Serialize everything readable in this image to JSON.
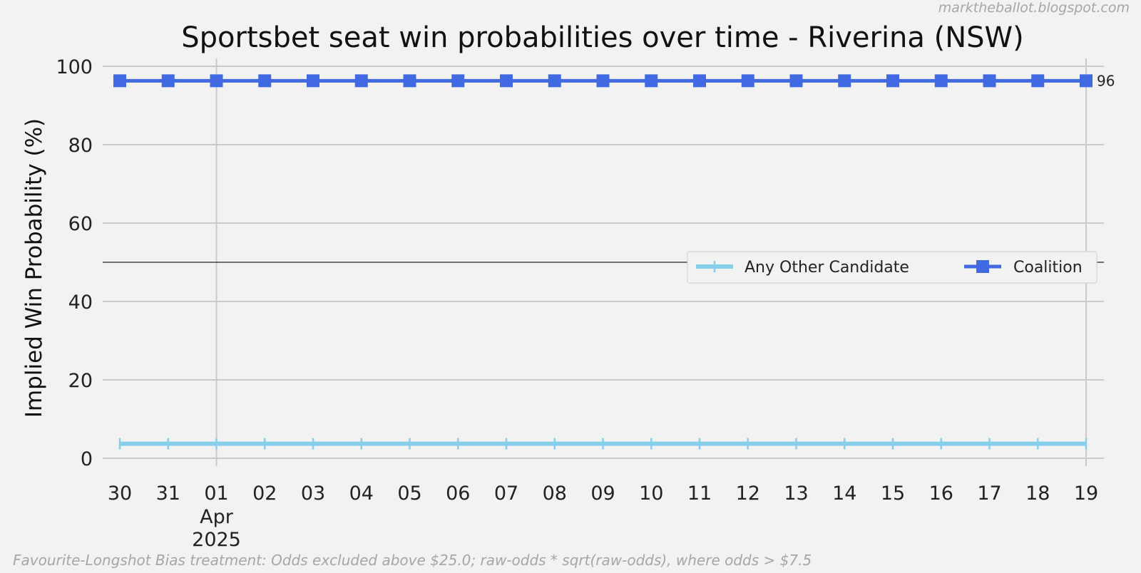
{
  "watermark": "marktheballot.blogspot.com",
  "footnote": "Favourite-Longshot Bias treatment: Odds excluded above $25.0; raw-odds * sqrt(raw-odds), where odds > $7.5",
  "chart_data": {
    "type": "line",
    "title": "Sportsbet seat win probabilities over time - Riverina (NSW)",
    "xlabel": "",
    "ylabel": "Implied Win Probability (%)",
    "x": [
      "2025-03-30",
      "2025-03-31",
      "2025-04-01",
      "2025-04-02",
      "2025-04-03",
      "2025-04-04",
      "2025-04-05",
      "2025-04-06",
      "2025-04-07",
      "2025-04-08",
      "2025-04-09",
      "2025-04-10",
      "2025-04-11",
      "2025-04-12",
      "2025-04-13",
      "2025-04-14",
      "2025-04-15",
      "2025-04-16",
      "2025-04-17",
      "2025-04-18",
      "2025-04-19"
    ],
    "x_tick_labels": [
      "30",
      "31",
      "01",
      "02",
      "03",
      "04",
      "05",
      "06",
      "07",
      "08",
      "09",
      "10",
      "11",
      "12",
      "13",
      "14",
      "15",
      "16",
      "17",
      "18",
      "19"
    ],
    "x_month_label": {
      "at": "2025-04-01",
      "month": "Apr",
      "year": "2025"
    },
    "ylim": [
      -2,
      102
    ],
    "yticks": [
      0,
      20,
      40,
      60,
      80,
      100
    ],
    "reference_line": 50,
    "grid": true,
    "legend_position": "center-right",
    "series": [
      {
        "name": "Any Other Candidate",
        "color": "#87ceeb",
        "marker": "plus",
        "values": [
          3.7,
          3.7,
          3.7,
          3.7,
          3.7,
          3.7,
          3.7,
          3.7,
          3.7,
          3.7,
          3.7,
          3.7,
          3.7,
          3.7,
          3.7,
          3.7,
          3.7,
          3.7,
          3.7,
          3.7,
          3.7
        ]
      },
      {
        "name": "Coalition",
        "color": "#4169e1",
        "marker": "square",
        "values": [
          96.3,
          96.3,
          96.3,
          96.3,
          96.3,
          96.3,
          96.3,
          96.3,
          96.3,
          96.3,
          96.3,
          96.3,
          96.3,
          96.3,
          96.3,
          96.3,
          96.3,
          96.3,
          96.3,
          96.3,
          96.3
        ]
      }
    ],
    "end_labels": [
      {
        "series": "Coalition",
        "text": "96"
      }
    ]
  }
}
